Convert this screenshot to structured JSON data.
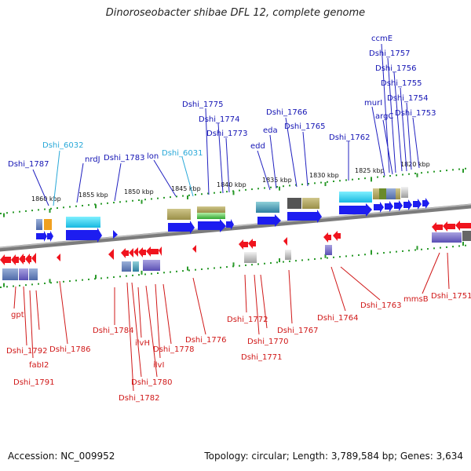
{
  "title": "Dinoroseobacter shibae DFL 12, complete genome",
  "footer": {
    "accession": "Accession: NC_009952",
    "summary": "Topology: circular; Length: 3,789,584 bp; Genes: 3,634"
  },
  "scale_ticks": [
    "1860 kbp",
    "1855 kbp",
    "1850 kbp",
    "1845 kbp",
    "1840 kbp",
    "1835 kbp",
    "1830 kbp",
    "1825 kbp",
    "1820 kbp"
  ],
  "forward_labels": [
    "Dshi_1787",
    "Dshi_6032",
    "nrdJ",
    "Dshi_1783",
    "lon",
    "Dshi_6031",
    "Dshi_1775",
    "Dshi_1774",
    "Dshi_1773",
    "edd",
    "eda",
    "Dshi_1766",
    "Dshi_1765",
    "Dshi_1762",
    "murI",
    "argC",
    "ccmE",
    "Dshi_1757",
    "Dshi_1756",
    "Dshi_1755",
    "Dshi_1754",
    "Dshi_1753"
  ],
  "reverse_labels": [
    "gpt",
    "Dshi_1792",
    "fabI2",
    "Dshi_1791",
    "Dshi_1786",
    "Dshi_1784",
    "ilvH",
    "Dshi_1782",
    "Dshi_1780",
    "ilvI",
    "Dshi_1778",
    "Dshi_1776",
    "Dshi_1772",
    "Dshi_1770",
    "Dshi_1771",
    "Dshi_1767",
    "Dshi_1764",
    "Dshi_1763",
    "mmsB",
    "Dshi_1751"
  ],
  "colors": {
    "forward": "#1d1df0",
    "reverse": "#f0141e",
    "cyan_label": "#28a8d8",
    "backbone": "#8c8c8c",
    "tick": "#2a9a2a"
  }
}
